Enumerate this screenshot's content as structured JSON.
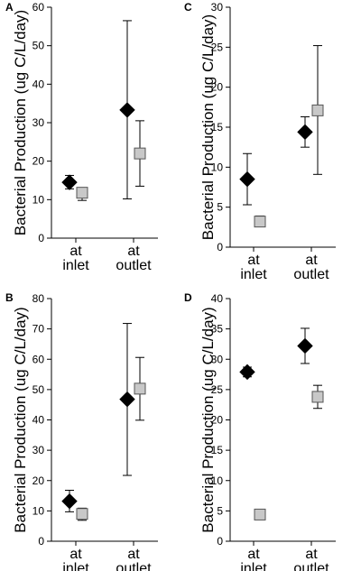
{
  "figure": {
    "ylabel": "Bacterial Production (ug C/L/day)",
    "categories": [
      [
        "at",
        "inlet"
      ],
      [
        "at",
        "outlet"
      ]
    ]
  },
  "chart_data": [
    {
      "panel": "A",
      "type": "scatter",
      "categories": [
        "at inlet",
        "at outlet"
      ],
      "ylabel": "Bacterial Production (ug C/L/day)",
      "ylim": [
        0,
        60
      ],
      "yticks": [
        0,
        10,
        20,
        30,
        40,
        50,
        60
      ],
      "series": [
        {
          "marker": "diamond",
          "color": "#000000",
          "values": [
            14.5,
            33.3
          ],
          "err_low": [
            12.8,
            10.2
          ],
          "err_high": [
            16.3,
            56.5
          ]
        },
        {
          "marker": "square",
          "color": "#c8c8c8",
          "values": [
            11.8,
            22.0
          ],
          "err_low": [
            9.8,
            13.5
          ],
          "err_high": [
            12.5,
            30.5
          ]
        }
      ]
    },
    {
      "panel": "C",
      "type": "scatter",
      "categories": [
        "at inlet",
        "at outlet"
      ],
      "ylabel": "Bacterial Production (ug C/L/day)",
      "ylim": [
        0,
        30
      ],
      "yticks": [
        0,
        5,
        10,
        15,
        20,
        25,
        30
      ],
      "series": [
        {
          "marker": "diamond",
          "color": "#000000",
          "values": [
            8.5,
            14.4
          ],
          "err_low": [
            5.3,
            12.5
          ],
          "err_high": [
            11.7,
            16.3
          ]
        },
        {
          "marker": "square",
          "color": "#c8c8c8",
          "values": [
            3.2,
            17.1
          ],
          "err_low": [
            2.6,
            9.1
          ],
          "err_high": [
            3.9,
            25.2
          ]
        }
      ]
    },
    {
      "panel": "B",
      "type": "scatter",
      "categories": [
        "at inlet",
        "at outlet"
      ],
      "ylabel": "Bacterial Production (ug C/L/day)",
      "ylim": [
        0,
        80
      ],
      "yticks": [
        0,
        10,
        20,
        30,
        40,
        50,
        60,
        70,
        80
      ],
      "series": [
        {
          "marker": "diamond",
          "color": "#000000",
          "values": [
            13.2,
            46.8
          ],
          "err_low": [
            9.7,
            21.7
          ],
          "err_high": [
            16.8,
            71.8
          ]
        },
        {
          "marker": "square",
          "color": "#c8c8c8",
          "values": [
            9.0,
            50.3
          ],
          "err_low": [
            6.9,
            39.9
          ],
          "err_high": [
            10.9,
            60.6
          ]
        }
      ]
    },
    {
      "panel": "D",
      "type": "scatter",
      "categories": [
        "at inlet",
        "at outlet"
      ],
      "ylabel": "Bacterial Production (ug C/L/day)",
      "ylim": [
        0,
        40
      ],
      "yticks": [
        0,
        5,
        10,
        15,
        20,
        25,
        30,
        35,
        40
      ],
      "series": [
        {
          "marker": "diamond",
          "color": "#000000",
          "values": [
            27.9,
            32.2
          ],
          "err_low": [
            27.1,
            29.3
          ],
          "err_high": [
            28.7,
            35.1
          ]
        },
        {
          "marker": "square",
          "color": "#c8c8c8",
          "values": [
            4.4,
            23.8
          ],
          "err_low": [
            3.6,
            21.9
          ],
          "err_high": [
            5.2,
            25.7
          ]
        }
      ]
    }
  ]
}
